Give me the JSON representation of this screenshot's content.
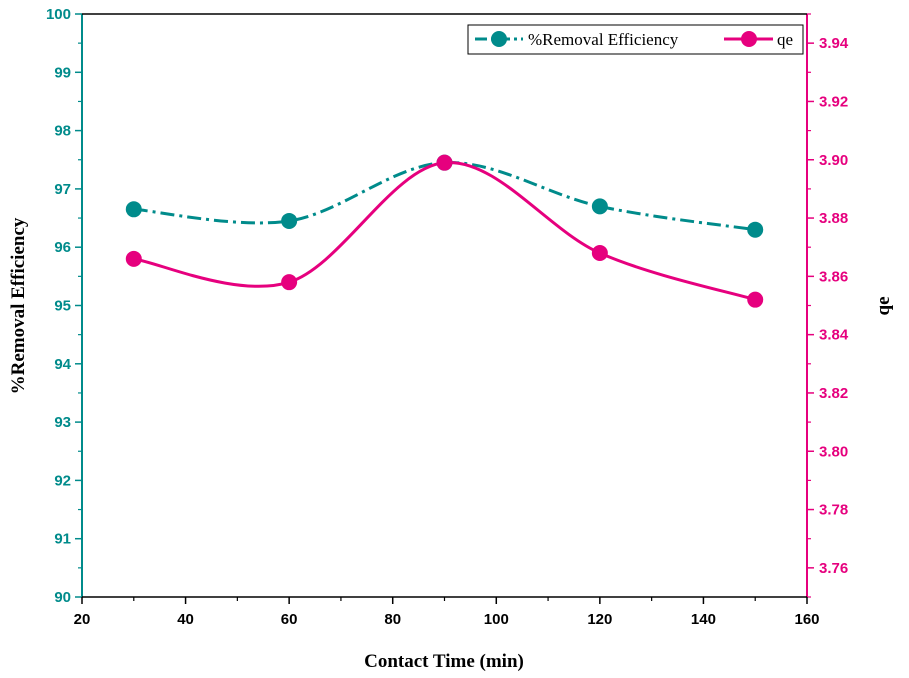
{
  "chart_data": {
    "type": "line",
    "x": [
      30,
      60,
      90,
      120,
      150
    ],
    "xlabel": "Contact Time (min)",
    "xlim": [
      20,
      160
    ],
    "xticks": [
      20,
      40,
      60,
      80,
      100,
      120,
      140,
      160
    ],
    "ylabel": "%Removal Efficiency",
    "ylim": [
      90,
      100
    ],
    "yticks": [
      90,
      91,
      92,
      93,
      94,
      95,
      96,
      97,
      98,
      99,
      100
    ],
    "y2label": "qe",
    "y2lim": [
      3.75,
      3.95
    ],
    "y2ticks": [
      "3.76",
      "3.78",
      "3.80",
      "3.82",
      "3.84",
      "3.86",
      "3.88",
      "3.90",
      "3.92",
      "3.94"
    ],
    "series": [
      {
        "name": "%Removal Efficiency",
        "axis": "left",
        "values": [
          96.65,
          96.45,
          97.45,
          96.7,
          96.3
        ],
        "color": "#008B8B",
        "line_style": "dash-dot"
      },
      {
        "name": "qe",
        "axis": "right",
        "values": [
          3.866,
          3.858,
          3.899,
          3.868,
          3.852
        ],
        "color": "#E6007E",
        "line_style": "solid"
      }
    ],
    "legend_position": "top-right",
    "grid": false
  }
}
